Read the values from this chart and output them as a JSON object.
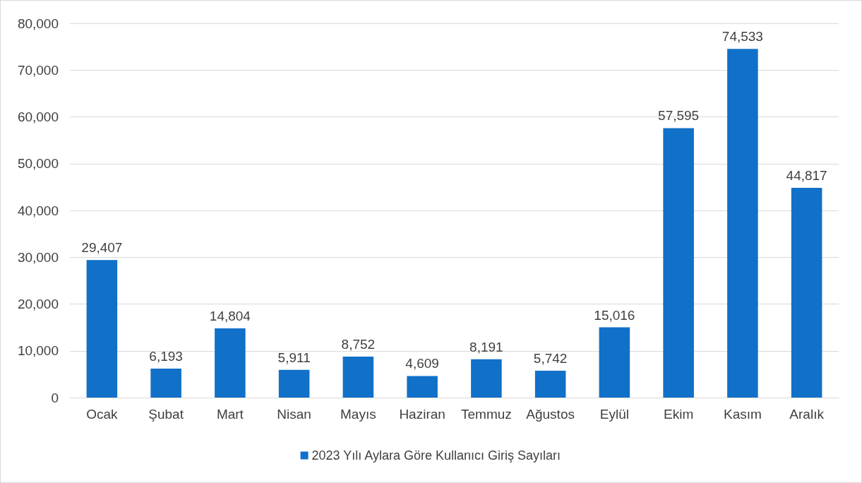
{
  "chart_data": {
    "type": "bar",
    "categories": [
      "Ocak",
      "Şubat",
      "Mart",
      "Nisan",
      "Mayıs",
      "Haziran",
      "Temmuz",
      "Ağustos",
      "Eylül",
      "Ekim",
      "Kasım",
      "Aralık"
    ],
    "series": [
      {
        "name": "2023 Yılı Aylara Göre Kullanıcı Giriş Sayıları",
        "color": "#1170c8",
        "values": [
          29407,
          6193,
          14804,
          5911,
          8752,
          4609,
          8191,
          5742,
          15016,
          57595,
          74533,
          44817
        ],
        "value_labels": [
          "29,407",
          "6,193",
          "14,804",
          "5,911",
          "8,752",
          "4,609",
          "8,191",
          "5,742",
          "15,016",
          "57,595",
          "74,533",
          "44,817"
        ]
      }
    ],
    "ylim": [
      0,
      80000
    ],
    "yticks": [
      {
        "value": 0,
        "label": "0"
      },
      {
        "value": 10000,
        "label": "10,000"
      },
      {
        "value": 20000,
        "label": "20,000"
      },
      {
        "value": 30000,
        "label": "30,000"
      },
      {
        "value": 40000,
        "label": "40,000"
      },
      {
        "value": 50000,
        "label": "50,000"
      },
      {
        "value": 60000,
        "label": "60,000"
      },
      {
        "value": 70000,
        "label": "70,000"
      },
      {
        "value": 80000,
        "label": "80,000"
      }
    ],
    "grid": "y",
    "legend": "bottom"
  }
}
